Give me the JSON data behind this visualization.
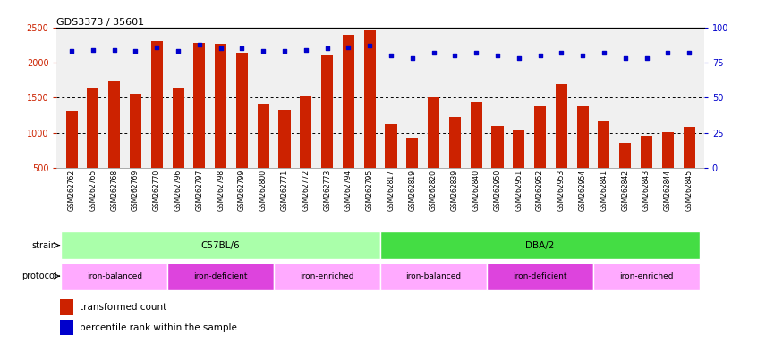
{
  "title": "GDS3373 / 35601",
  "samples": [
    "GSM262762",
    "GSM262765",
    "GSM262768",
    "GSM262769",
    "GSM262770",
    "GSM262796",
    "GSM262797",
    "GSM262798",
    "GSM262799",
    "GSM262800",
    "GSM262771",
    "GSM262772",
    "GSM262773",
    "GSM262794",
    "GSM262795",
    "GSM262817",
    "GSM262819",
    "GSM262820",
    "GSM262839",
    "GSM262840",
    "GSM262950",
    "GSM262951",
    "GSM262952",
    "GSM262953",
    "GSM262954",
    "GSM262841",
    "GSM262842",
    "GSM262843",
    "GSM262844",
    "GSM262845"
  ],
  "bar_values": [
    1320,
    1650,
    1730,
    1560,
    2300,
    1640,
    2280,
    2270,
    2140,
    1420,
    1330,
    1520,
    2100,
    2390,
    2460,
    1120,
    940,
    1500,
    1220,
    1440,
    1100,
    1040,
    1380,
    1690,
    1380,
    1160,
    860,
    960,
    1010,
    1090
  ],
  "percentile_values": [
    83,
    84,
    84,
    83,
    86,
    83,
    88,
    85,
    85,
    83,
    83,
    84,
    85,
    86,
    87,
    80,
    78,
    82,
    80,
    82,
    80,
    78,
    80,
    82,
    80,
    82,
    78,
    78,
    82,
    82
  ],
  "strain_groups": [
    {
      "label": "C57BL/6",
      "start": 0,
      "end": 15,
      "color": "#aaffaa"
    },
    {
      "label": "DBA/2",
      "start": 15,
      "end": 30,
      "color": "#44dd44"
    }
  ],
  "protocol_groups": [
    {
      "label": "iron-balanced",
      "start": 0,
      "end": 5,
      "color": "#ffaaff"
    },
    {
      "label": "iron-deficient",
      "start": 5,
      "end": 10,
      "color": "#dd44dd"
    },
    {
      "label": "iron-enriched",
      "start": 10,
      "end": 15,
      "color": "#ffaaff"
    },
    {
      "label": "iron-balanced",
      "start": 15,
      "end": 20,
      "color": "#ffaaff"
    },
    {
      "label": "iron-deficient",
      "start": 20,
      "end": 25,
      "color": "#dd44dd"
    },
    {
      "label": "iron-enriched",
      "start": 25,
      "end": 30,
      "color": "#ffaaff"
    }
  ],
  "bar_color": "#cc2200",
  "dot_color": "#0000cc",
  "ylim_left": [
    500,
    2500
  ],
  "ylim_right": [
    0,
    100
  ],
  "yticks_left": [
    500,
    1000,
    1500,
    2000,
    2500
  ],
  "yticks_right": [
    0,
    25,
    50,
    75,
    100
  ],
  "grid_values": [
    1000,
    1500,
    2000
  ],
  "bg_color": "#f0f0f0",
  "legend_items": [
    {
      "label": "transformed count",
      "color": "#cc2200"
    },
    {
      "label": "percentile rank within the sample",
      "color": "#0000cc"
    }
  ]
}
